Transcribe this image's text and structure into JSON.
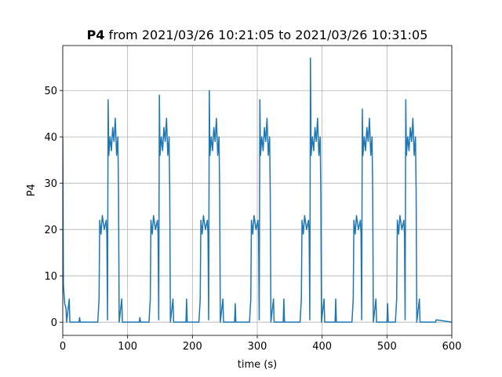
{
  "chart_data": {
    "type": "line",
    "title_name": "P4",
    "title": "from 2021/03/26 10:21:05 to 2021/03/26 10:31:05",
    "xlabel": "time (s)",
    "ylabel": "P4",
    "xlim": [
      0,
      600
    ],
    "ylim": [
      -2.85,
      59.7
    ],
    "xticks": [
      0,
      100,
      200,
      300,
      400,
      500,
      600
    ],
    "yticks": [
      0,
      10,
      20,
      30,
      40,
      50
    ],
    "grid": true,
    "series": [
      {
        "name": "P4",
        "color": "#1f77b4",
        "x": [
          0,
          1,
          3,
          5,
          6,
          10,
          11,
          25,
          26,
          27,
          54,
          56,
          57,
          59,
          61,
          64,
          67,
          68,
          69,
          70,
          71,
          73,
          75,
          77,
          79,
          81,
          83,
          85,
          86,
          87,
          91,
          92,
          118,
          119,
          120,
          133,
          135,
          136,
          138,
          140,
          143,
          146,
          147,
          148,
          149,
          150,
          152,
          154,
          156,
          158,
          160,
          162,
          164,
          165,
          166,
          170,
          171,
          190,
          191,
          192,
          210,
          212,
          213,
          215,
          217,
          220,
          223,
          224,
          225,
          226,
          227,
          229,
          231,
          233,
          235,
          237,
          239,
          241,
          242,
          243,
          247,
          248,
          265,
          266,
          267,
          288,
          290,
          291,
          293,
          295,
          298,
          301,
          302,
          303,
          304,
          305,
          307,
          309,
          311,
          313,
          315,
          317,
          319,
          320,
          321,
          325,
          326,
          340,
          341,
          342,
          366,
          368,
          369,
          371,
          373,
          376,
          379,
          380,
          381,
          382,
          383,
          385,
          387,
          389,
          391,
          393,
          395,
          397,
          398,
          399,
          403,
          404,
          420,
          421,
          422,
          446,
          448,
          449,
          451,
          453,
          456,
          459,
          460,
          461,
          462,
          463,
          465,
          467,
          469,
          471,
          473,
          475,
          477,
          478,
          479,
          483,
          484,
          500,
          501,
          502,
          513,
          515,
          516,
          518,
          520,
          523,
          526,
          527,
          528,
          529,
          530,
          532,
          534,
          536,
          538,
          540,
          542,
          544,
          545,
          546,
          550,
          551,
          575,
          576,
          600
        ],
        "values": [
          40,
          8,
          4,
          3,
          0,
          5,
          0,
          0,
          1,
          0,
          0,
          5,
          22,
          19,
          23,
          20,
          22,
          19,
          0.5,
          48,
          36,
          40,
          37,
          42,
          39,
          44,
          36,
          40,
          28,
          0,
          5,
          0,
          0,
          1,
          0,
          0,
          5,
          22,
          19,
          23,
          20,
          22,
          19,
          0.5,
          49,
          36,
          40,
          37,
          42,
          39,
          44,
          36,
          40,
          28,
          0,
          5,
          0,
          0,
          5,
          0,
          0,
          5,
          22,
          19,
          23,
          20,
          22,
          19,
          0.5,
          50,
          36,
          40,
          37,
          42,
          39,
          44,
          36,
          40,
          28,
          0,
          5,
          0,
          0,
          4,
          0,
          0,
          5,
          22,
          19,
          23,
          20,
          22,
          19,
          0.5,
          48,
          36,
          40,
          37,
          42,
          39,
          44,
          36,
          40,
          28,
          0,
          5,
          0,
          0,
          5,
          0,
          0,
          5,
          22,
          19,
          23,
          20,
          22,
          19,
          0.5,
          57,
          36,
          40,
          37,
          42,
          39,
          44,
          36,
          40,
          28,
          0,
          5,
          0,
          0,
          5,
          0,
          0,
          5,
          22,
          19,
          23,
          20,
          22,
          19,
          0.5,
          46,
          36,
          40,
          37,
          42,
          39,
          44,
          36,
          40,
          28,
          0,
          5,
          0,
          0,
          4,
          0,
          0,
          5,
          22,
          19,
          23,
          20,
          22,
          19,
          0.5,
          48,
          36,
          40,
          37,
          42,
          39,
          44,
          36,
          40,
          28,
          0,
          5,
          0,
          0,
          0.5,
          0
        ]
      }
    ]
  }
}
